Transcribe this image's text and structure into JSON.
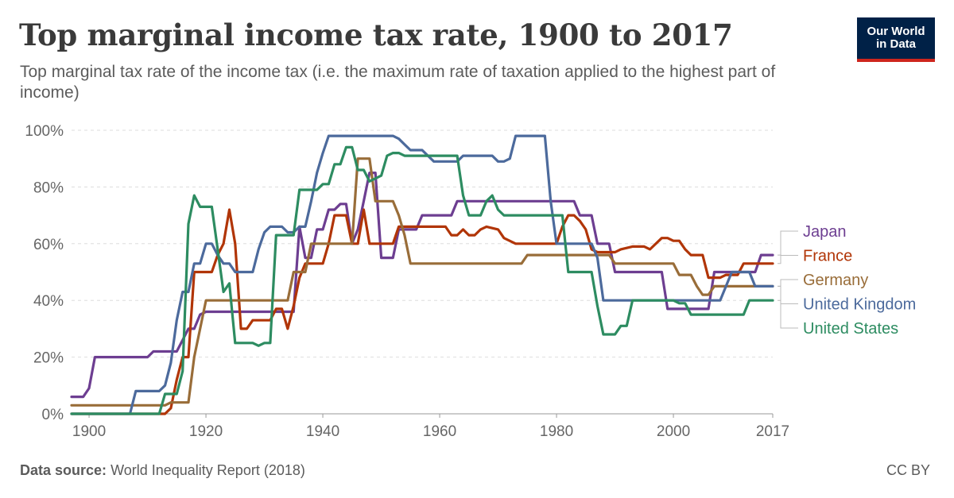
{
  "header": {
    "title": "Top marginal income tax rate, 1900 to 2017",
    "subtitle": "Top marginal tax rate of the income tax (i.e. the maximum rate of taxation applied to the highest part of income)",
    "logo_line1": "Our World",
    "logo_line2": "in Data"
  },
  "footer": {
    "source_label": "Data source:",
    "source_text": "World Inequality Report (2018)",
    "license": "CC BY"
  },
  "chart_data": {
    "type": "line",
    "title": "Top marginal income tax rate, 1900 to 2017",
    "xlabel": "",
    "ylabel": "",
    "xlim": [
      1897,
      2017
    ],
    "ylim": [
      0,
      100
    ],
    "grid": true,
    "x_ticks": [
      {
        "value": 1900,
        "label": "1900"
      },
      {
        "value": 1920,
        "label": "1920"
      },
      {
        "value": 1940,
        "label": "1940"
      },
      {
        "value": 1960,
        "label": "1960"
      },
      {
        "value": 1980,
        "label": "1980"
      },
      {
        "value": 2000,
        "label": "2000"
      },
      {
        "value": 2017,
        "label": "2017"
      }
    ],
    "y_ticks": [
      {
        "value": 0,
        "label": "0%"
      },
      {
        "value": 20,
        "label": "20%"
      },
      {
        "value": 40,
        "label": "40%"
      },
      {
        "value": 60,
        "label": "60%"
      },
      {
        "value": 80,
        "label": "80%"
      },
      {
        "value": 100,
        "label": "100%"
      }
    ],
    "legend_placement": "right",
    "series": [
      {
        "name": "Japan",
        "color": "#6d3e91",
        "label_value": 56,
        "points": [
          [
            1897,
            6
          ],
          [
            1899,
            6
          ],
          [
            1900,
            9
          ],
          [
            1901,
            20
          ],
          [
            1905,
            20
          ],
          [
            1910,
            20
          ],
          [
            1911,
            22
          ],
          [
            1915,
            22
          ],
          [
            1916,
            26
          ],
          [
            1917,
            30
          ],
          [
            1918,
            30
          ],
          [
            1919,
            35
          ],
          [
            1920,
            36
          ],
          [
            1934,
            36
          ],
          [
            1935,
            36
          ],
          [
            1936,
            66
          ],
          [
            1937,
            55
          ],
          [
            1938,
            55
          ],
          [
            1939,
            65
          ],
          [
            1940,
            65
          ],
          [
            1941,
            72
          ],
          [
            1942,
            72
          ],
          [
            1943,
            74
          ],
          [
            1944,
            74
          ],
          [
            1945,
            60
          ],
          [
            1946,
            65
          ],
          [
            1947,
            75
          ],
          [
            1948,
            85
          ],
          [
            1949,
            85
          ],
          [
            1950,
            55
          ],
          [
            1951,
            55
          ],
          [
            1952,
            55
          ],
          [
            1953,
            65
          ],
          [
            1954,
            65
          ],
          [
            1955,
            65
          ],
          [
            1956,
            65
          ],
          [
            1957,
            70
          ],
          [
            1962,
            70
          ],
          [
            1963,
            75
          ],
          [
            1983,
            75
          ],
          [
            1984,
            70
          ],
          [
            1986,
            70
          ],
          [
            1987,
            60
          ],
          [
            1989,
            60
          ],
          [
            1990,
            50
          ],
          [
            1998,
            50
          ],
          [
            1999,
            37
          ],
          [
            2006,
            37
          ],
          [
            2007,
            50
          ],
          [
            2013,
            50
          ],
          [
            2014,
            50
          ],
          [
            2015,
            56
          ],
          [
            2017,
            56
          ]
        ]
      },
      {
        "name": "France",
        "color": "#b13507",
        "label_value": 53,
        "points": [
          [
            1897,
            0
          ],
          [
            1913,
            0
          ],
          [
            1914,
            2
          ],
          [
            1915,
            12
          ],
          [
            1916,
            20
          ],
          [
            1917,
            20
          ],
          [
            1918,
            50
          ],
          [
            1919,
            50
          ],
          [
            1920,
            50
          ],
          [
            1921,
            50
          ],
          [
            1922,
            56
          ],
          [
            1923,
            60
          ],
          [
            1924,
            72
          ],
          [
            1925,
            60
          ],
          [
            1926,
            30
          ],
          [
            1927,
            30
          ],
          [
            1928,
            33
          ],
          [
            1931,
            33
          ],
          [
            1932,
            37
          ],
          [
            1933,
            37
          ],
          [
            1934,
            30
          ],
          [
            1935,
            38
          ],
          [
            1936,
            48
          ],
          [
            1937,
            53
          ],
          [
            1940,
            53
          ],
          [
            1941,
            60
          ],
          [
            1942,
            70
          ],
          [
            1944,
            70
          ],
          [
            1945,
            60
          ],
          [
            1946,
            60
          ],
          [
            1947,
            72
          ],
          [
            1948,
            60
          ],
          [
            1952,
            60
          ],
          [
            1953,
            66
          ],
          [
            1961,
            66
          ],
          [
            1962,
            63
          ],
          [
            1963,
            63
          ],
          [
            1964,
            65
          ],
          [
            1965,
            63
          ],
          [
            1966,
            63
          ],
          [
            1967,
            65
          ],
          [
            1968,
            66
          ],
          [
            1970,
            65
          ],
          [
            1971,
            62
          ],
          [
            1973,
            60
          ],
          [
            1974,
            60
          ],
          [
            1980,
            60
          ],
          [
            1981,
            66
          ],
          [
            1982,
            70
          ],
          [
            1983,
            70
          ],
          [
            1984,
            68
          ],
          [
            1985,
            65
          ],
          [
            1986,
            58
          ],
          [
            1987,
            57
          ],
          [
            1990,
            57
          ],
          [
            1991,
            58
          ],
          [
            1993,
            59
          ],
          [
            1995,
            59
          ],
          [
            1996,
            58
          ],
          [
            1998,
            62
          ],
          [
            1999,
            62
          ],
          [
            2000,
            61
          ],
          [
            2001,
            61
          ],
          [
            2002,
            58
          ],
          [
            2003,
            56
          ],
          [
            2005,
            56
          ],
          [
            2006,
            48
          ],
          [
            2008,
            48
          ],
          [
            2009,
            49
          ],
          [
            2011,
            49
          ],
          [
            2012,
            53
          ],
          [
            2017,
            53
          ]
        ]
      },
      {
        "name": "Germany",
        "color": "#996d39",
        "label_value": 45,
        "points": [
          [
            1897,
            3
          ],
          [
            1913,
            3
          ],
          [
            1914,
            4
          ],
          [
            1917,
            4
          ],
          [
            1918,
            20
          ],
          [
            1919,
            30
          ],
          [
            1920,
            40
          ],
          [
            1934,
            40
          ],
          [
            1935,
            50
          ],
          [
            1937,
            50
          ],
          [
            1938,
            60
          ],
          [
            1945,
            60
          ],
          [
            1946,
            90
          ],
          [
            1948,
            90
          ],
          [
            1949,
            75
          ],
          [
            1952,
            75
          ],
          [
            1953,
            70
          ],
          [
            1954,
            63
          ],
          [
            1955,
            53
          ],
          [
            1974,
            53
          ],
          [
            1975,
            56
          ],
          [
            1989,
            56
          ],
          [
            1990,
            53
          ],
          [
            2000,
            53
          ],
          [
            2001,
            49
          ],
          [
            2003,
            49
          ],
          [
            2004,
            45
          ],
          [
            2005,
            42
          ],
          [
            2006,
            42
          ],
          [
            2007,
            45
          ],
          [
            2017,
            45
          ]
        ]
      },
      {
        "name": "United Kingdom",
        "color": "#4c6a9c",
        "label_value": 45,
        "points": [
          [
            1897,
            0
          ],
          [
            1907,
            0
          ],
          [
            1908,
            8
          ],
          [
            1912,
            8
          ],
          [
            1913,
            10
          ],
          [
            1914,
            18
          ],
          [
            1915,
            33
          ],
          [
            1916,
            43
          ],
          [
            1917,
            43
          ],
          [
            1918,
            53
          ],
          [
            1919,
            53
          ],
          [
            1920,
            60
          ],
          [
            1921,
            60
          ],
          [
            1922,
            56
          ],
          [
            1923,
            53
          ],
          [
            1924,
            53
          ],
          [
            1925,
            50
          ],
          [
            1928,
            50
          ],
          [
            1929,
            58
          ],
          [
            1930,
            64
          ],
          [
            1931,
            66
          ],
          [
            1933,
            66
          ],
          [
            1934,
            64
          ],
          [
            1935,
            64
          ],
          [
            1936,
            66
          ],
          [
            1937,
            66
          ],
          [
            1938,
            75
          ],
          [
            1939,
            85
          ],
          [
            1940,
            92
          ],
          [
            1941,
            98
          ],
          [
            1952,
            98
          ],
          [
            1953,
            97
          ],
          [
            1954,
            95
          ],
          [
            1955,
            93
          ],
          [
            1957,
            93
          ],
          [
            1958,
            91
          ],
          [
            1959,
            89
          ],
          [
            1963,
            89
          ],
          [
            1964,
            91
          ],
          [
            1969,
            91
          ],
          [
            1970,
            89
          ],
          [
            1971,
            89
          ],
          [
            1972,
            90
          ],
          [
            1973,
            98
          ],
          [
            1978,
            98
          ],
          [
            1979,
            75
          ],
          [
            1980,
            60
          ],
          [
            1986,
            60
          ],
          [
            1987,
            55
          ],
          [
            1988,
            40
          ],
          [
            2008,
            40
          ],
          [
            2009,
            45
          ],
          [
            2010,
            50
          ],
          [
            2013,
            50
          ],
          [
            2014,
            45
          ],
          [
            2017,
            45
          ]
        ]
      },
      {
        "name": "United States",
        "color": "#2d8c61",
        "label_value": 40,
        "points": [
          [
            1897,
            0
          ],
          [
            1912,
            0
          ],
          [
            1913,
            7
          ],
          [
            1915,
            7
          ],
          [
            1916,
            15
          ],
          [
            1917,
            67
          ],
          [
            1918,
            77
          ],
          [
            1919,
            73
          ],
          [
            1921,
            73
          ],
          [
            1922,
            58
          ],
          [
            1923,
            43
          ],
          [
            1924,
            46
          ],
          [
            1925,
            25
          ],
          [
            1928,
            25
          ],
          [
            1929,
            24
          ],
          [
            1930,
            25
          ],
          [
            1931,
            25
          ],
          [
            1932,
            63
          ],
          [
            1935,
            63
          ],
          [
            1936,
            79
          ],
          [
            1939,
            79
          ],
          [
            1940,
            81
          ],
          [
            1941,
            81
          ],
          [
            1942,
            88
          ],
          [
            1943,
            88
          ],
          [
            1944,
            94
          ],
          [
            1945,
            94
          ],
          [
            1946,
            86
          ],
          [
            1947,
            86
          ],
          [
            1948,
            82
          ],
          [
            1950,
            84
          ],
          [
            1951,
            91
          ],
          [
            1952,
            92
          ],
          [
            1953,
            92
          ],
          [
            1954,
            91
          ],
          [
            1963,
            91
          ],
          [
            1964,
            77
          ],
          [
            1965,
            70
          ],
          [
            1967,
            70
          ],
          [
            1968,
            75
          ],
          [
            1969,
            77
          ],
          [
            1970,
            72
          ],
          [
            1971,
            70
          ],
          [
            1981,
            70
          ],
          [
            1982,
            50
          ],
          [
            1986,
            50
          ],
          [
            1987,
            38
          ],
          [
            1988,
            28
          ],
          [
            1990,
            28
          ],
          [
            1991,
            31
          ],
          [
            1992,
            31
          ],
          [
            1993,
            40
          ],
          [
            2000,
            40
          ],
          [
            2001,
            39
          ],
          [
            2002,
            39
          ],
          [
            2003,
            35
          ],
          [
            2012,
            35
          ],
          [
            2013,
            40
          ],
          [
            2017,
            40
          ]
        ]
      }
    ]
  }
}
